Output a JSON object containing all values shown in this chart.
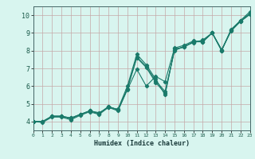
{
  "xlabel": "Humidex (Indice chaleur)",
  "bg_color": "#d8f5ef",
  "grid_color": "#c4a8a8",
  "line_color": "#1a7a6a",
  "xlim": [
    0,
    23
  ],
  "ylim": [
    3.5,
    10.5
  ],
  "xticks": [
    0,
    1,
    2,
    3,
    4,
    5,
    6,
    7,
    8,
    9,
    10,
    11,
    12,
    13,
    14,
    15,
    16,
    17,
    18,
    19,
    20,
    21,
    22,
    23
  ],
  "yticks": [
    4,
    5,
    6,
    7,
    8,
    9,
    10
  ],
  "series": [
    {
      "x": [
        0,
        1,
        2,
        3,
        4,
        5,
        6,
        7,
        8,
        9,
        10,
        11,
        12,
        13,
        14,
        15,
        16,
        17,
        18,
        19,
        20,
        21,
        22,
        23
      ],
      "y": [
        4.0,
        4.0,
        4.3,
        4.3,
        4.2,
        4.4,
        4.6,
        4.5,
        4.8,
        4.7,
        6.0,
        7.8,
        7.2,
        6.4,
        5.5,
        8.1,
        8.2,
        8.5,
        8.5,
        9.0,
        8.0,
        9.2,
        9.7,
        10.2
      ]
    },
    {
      "x": [
        0,
        1,
        2,
        3,
        4,
        5,
        6,
        7,
        8,
        9,
        10,
        11,
        12,
        13,
        14,
        15,
        16,
        17,
        18,
        19,
        20,
        21,
        22,
        23
      ],
      "y": [
        4.0,
        4.0,
        4.3,
        4.3,
        4.2,
        4.4,
        4.6,
        4.45,
        4.85,
        4.65,
        5.85,
        7.65,
        7.1,
        6.3,
        5.7,
        8.0,
        8.25,
        8.45,
        8.6,
        9.0,
        8.0,
        9.15,
        9.7,
        10.1
      ]
    },
    {
      "x": [
        0,
        1,
        2,
        3,
        4,
        5,
        6,
        7,
        8,
        9,
        10,
        11,
        12,
        13,
        14,
        15,
        16,
        17,
        18,
        19,
        20,
        21,
        22,
        23
      ],
      "y": [
        4.0,
        4.0,
        4.3,
        4.3,
        4.15,
        4.4,
        4.6,
        4.45,
        4.85,
        4.65,
        5.85,
        7.6,
        7.05,
        6.2,
        5.6,
        8.05,
        8.2,
        8.5,
        8.55,
        9.0,
        8.05,
        9.15,
        9.65,
        10.05
      ]
    },
    {
      "x": [
        0,
        1,
        2,
        3,
        4,
        5,
        6,
        7,
        8,
        9,
        10,
        11,
        12,
        13,
        14,
        15,
        16,
        17,
        18,
        19,
        20,
        21,
        22,
        23
      ],
      "y": [
        4.0,
        3.95,
        4.25,
        4.25,
        4.1,
        4.35,
        4.55,
        4.4,
        4.8,
        4.6,
        5.8,
        6.95,
        6.0,
        6.55,
        6.25,
        8.15,
        8.3,
        8.55,
        8.5,
        9.0,
        8.05,
        9.1,
        9.65,
        10.05
      ]
    }
  ]
}
